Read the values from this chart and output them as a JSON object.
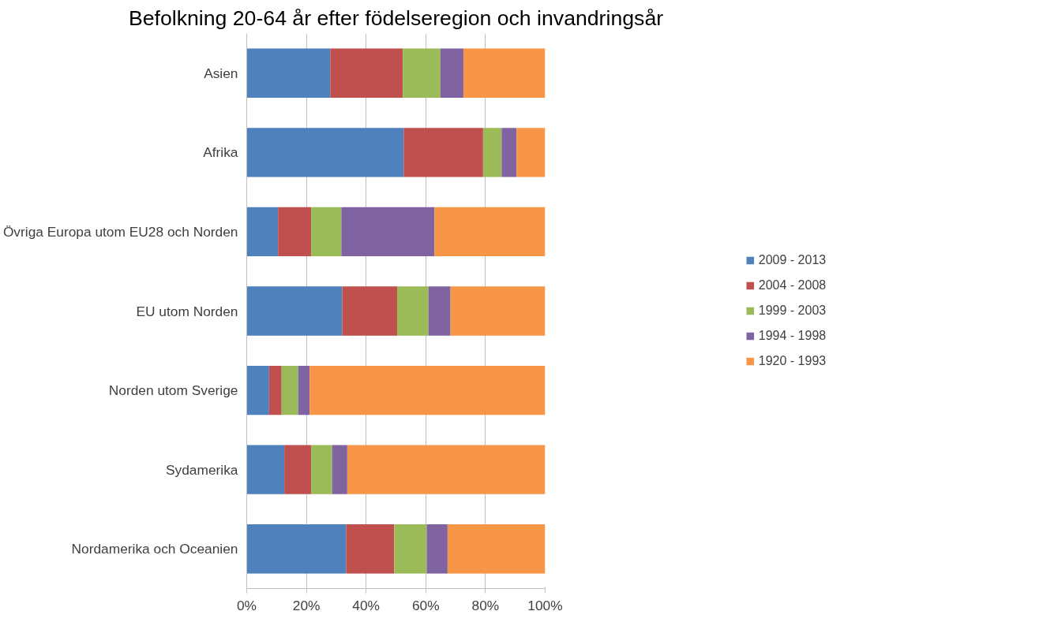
{
  "chart_data": {
    "type": "bar",
    "orientation": "horizontal",
    "stacked": true,
    "title": "Befolkning 20-64 år efter födelseregion och invandringsår",
    "categories": [
      "Asien",
      "Afrika",
      "Övriga Europa utom EU28 och Norden",
      "EU utom Norden",
      "Norden utom Sverige",
      "Sydamerika",
      "Nordamerika och Oceanien"
    ],
    "series": [
      {
        "name": "2009 - 2013",
        "color": "#4f81bd",
        "values": [
          28.0,
          52.6,
          10.5,
          32.0,
          7.5,
          12.6,
          33.3
        ]
      },
      {
        "name": "2004 - 2008",
        "color": "#c0504d",
        "values": [
          24.3,
          26.6,
          11.1,
          18.4,
          4.2,
          9.0,
          16.1
        ]
      },
      {
        "name": "1999 - 2003",
        "color": "#9bbb59",
        "values": [
          12.6,
          6.2,
          10.1,
          10.5,
          5.5,
          7.0,
          10.9
        ]
      },
      {
        "name": "1994 - 1998",
        "color": "#8064a2",
        "values": [
          7.7,
          5.0,
          31.2,
          7.4,
          3.9,
          5.1,
          7.0
        ]
      },
      {
        "name": "1920 - 1993",
        "color": "#f79646",
        "values": [
          27.4,
          9.6,
          37.1,
          31.7,
          78.9,
          66.3,
          32.7
        ]
      }
    ],
    "xlim": [
      0,
      100
    ],
    "xticks": [
      {
        "value": 0,
        "label": "0%"
      },
      {
        "value": 20,
        "label": "20%"
      },
      {
        "value": 40,
        "label": "40%"
      },
      {
        "value": 60,
        "label": "60%"
      },
      {
        "value": 80,
        "label": "80%"
      },
      {
        "value": 100,
        "label": "100%"
      }
    ],
    "grid": "x",
    "legend": "right"
  }
}
